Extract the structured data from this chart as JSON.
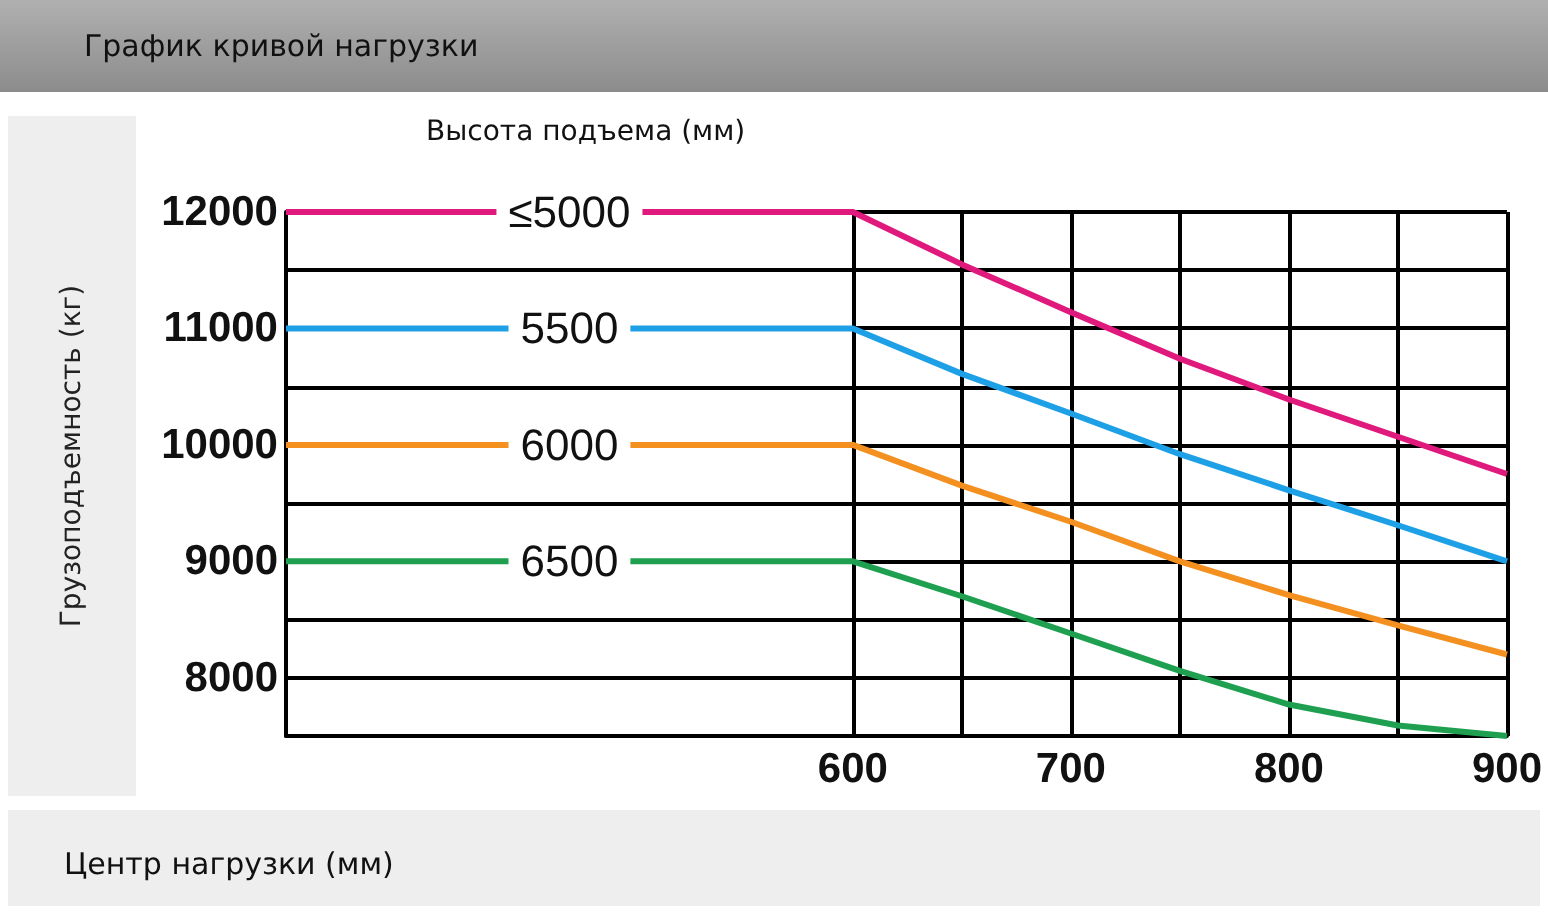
{
  "chart_data": {
    "type": "line",
    "title": "График кривой нагрузки",
    "xlabel": "Центр нагрузки (мм)",
    "ylabel": "Грузоподъемность (кг)",
    "legend_title": "Высота подъема (мм)",
    "x": [
      340,
      600,
      650,
      700,
      750,
      800,
      850,
      900
    ],
    "series": [
      {
        "name": "≤5000",
        "color": "#e0197d",
        "values": [
          12000,
          12000,
          11550,
          11140,
          10740,
          10390,
          10070,
          9750
        ]
      },
      {
        "name": "5500",
        "color": "#1ea0e6",
        "values": [
          11000,
          11000,
          10610,
          10270,
          9920,
          9610,
          9310,
          9000
        ]
      },
      {
        "name": "6000",
        "color": "#f39020",
        "values": [
          10000,
          10000,
          9650,
          9340,
          9000,
          8710,
          8450,
          8200
        ]
      },
      {
        "name": "6500",
        "color": "#1fa050",
        "values": [
          9000,
          9000,
          8700,
          8380,
          8060,
          7770,
          7590,
          7500
        ]
      }
    ],
    "xlim": [
      340,
      900
    ],
    "xticks": [
      600,
      {
        "value": 650,
        "label": null
      },
      700,
      {
        "value": 750,
        "label": null
      },
      800,
      {
        "value": 850,
        "label": null
      },
      900
    ],
    "ylim": [
      7500,
      12000
    ],
    "yticks": [
      {
        "value": 8500,
        "label": null
      },
      8000,
      9000,
      {
        "value": 9500,
        "label": null
      },
      10000,
      {
        "value": 10500,
        "label": null
      },
      11000,
      {
        "value": 11500,
        "label": null
      },
      12000
    ],
    "grid": true,
    "marker": "none",
    "line_style": "solid"
  }
}
